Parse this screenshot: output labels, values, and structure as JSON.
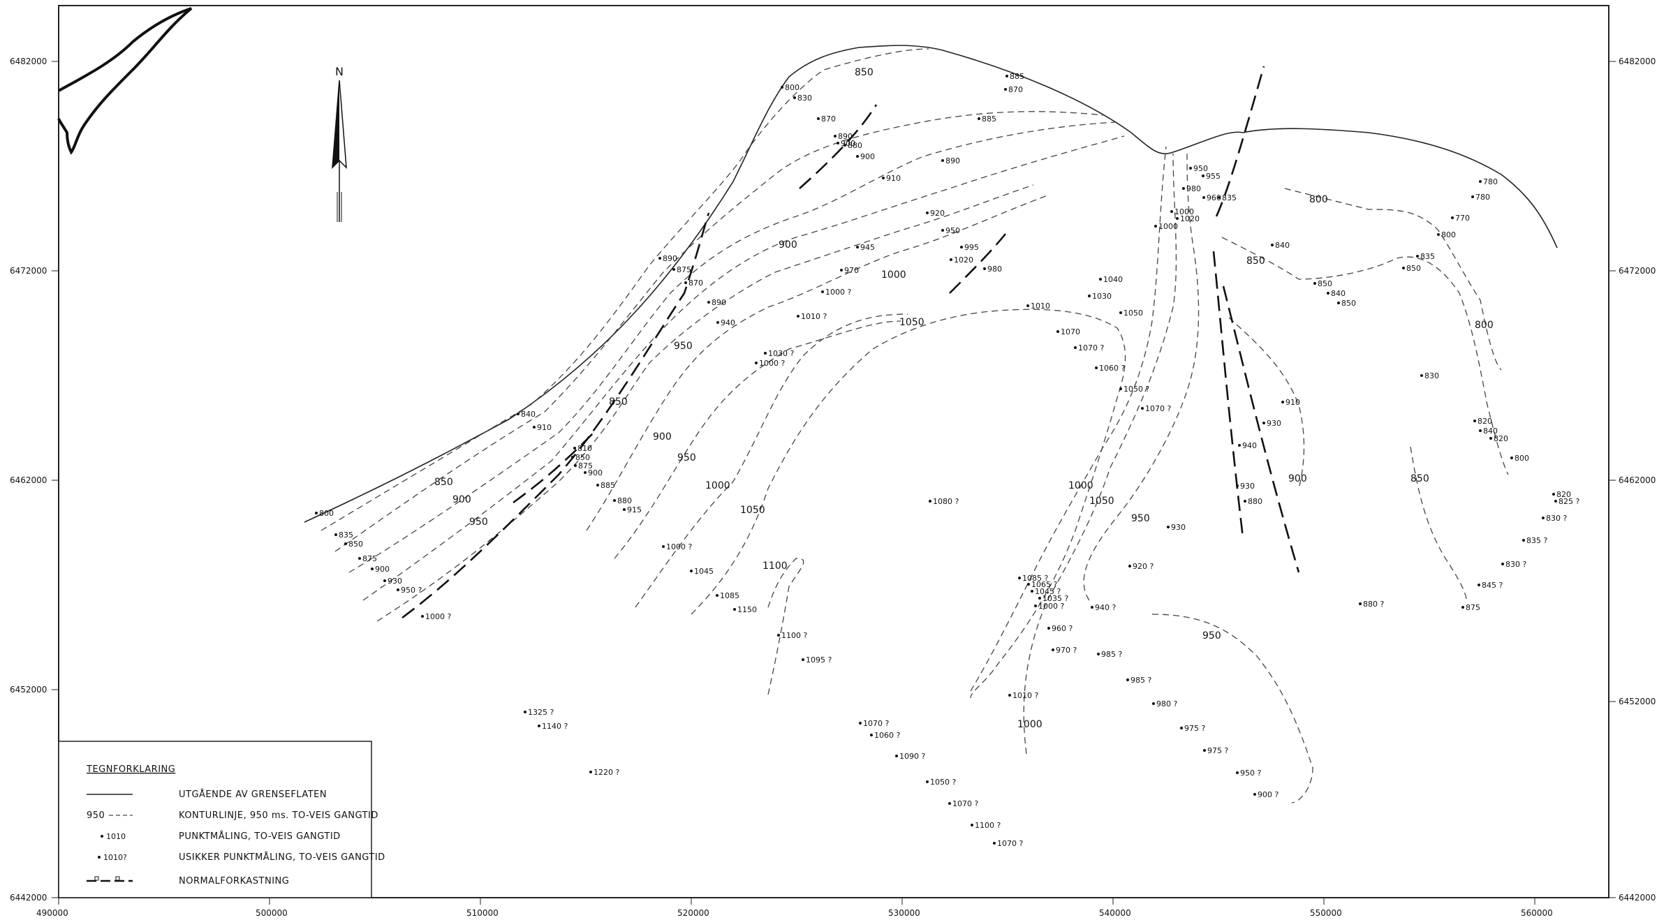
{
  "map": {
    "x_ticks": [
      "490000",
      "500000",
      "510000",
      "520000",
      "530000",
      "540000",
      "550000",
      "560000"
    ],
    "y_ticks_left": [
      "6482000",
      "6472000",
      "6462000",
      "6452000",
      "6442000"
    ],
    "y_ticks_right": [
      "6482000",
      "6472000",
      "6462000",
      "6452000",
      "6442000"
    ],
    "north_label": "N"
  },
  "legend": {
    "title": "TEGNFORKLARING",
    "items": [
      {
        "prefix": "",
        "label": "UTGÅENDE AV GRENSEFLATEN"
      },
      {
        "prefix": "950",
        "label": "KONTURLINJE, 950 ms. TO-VEIS GANGTID"
      },
      {
        "prefix": "1010",
        "label": "PUNKTMÅLING, TO-VEIS GANGTID"
      },
      {
        "prefix": "1010?",
        "label": "USIKKER PUNKTMÅLING, TO-VEIS GANGTID"
      },
      {
        "prefix": "",
        "label": "NORMALFORKASTNING"
      }
    ]
  },
  "contour_labels": [
    "850",
    "900",
    "950",
    "1000",
    "1050",
    "850",
    "900",
    "950",
    "1000",
    "1050",
    "1100",
    "900",
    "950",
    "1000",
    "1050",
    "1000",
    "950",
    "850",
    "800",
    "850",
    "800",
    "900",
    "950",
    "850"
  ],
  "points": [
    "800",
    "830",
    "870",
    "890",
    "900",
    "880",
    "900",
    "885",
    "870",
    "885",
    "890",
    "910",
    "920",
    "950",
    "995",
    "1020",
    "980",
    "945",
    "970",
    "1000 ?",
    "1010 ?",
    "1010",
    "1030",
    "1040",
    "1050",
    "1070",
    "1070 ?",
    "1060 ?",
    "1050 ?",
    "1070 ?",
    "890",
    "875",
    "870",
    "890",
    "940",
    "1030 ?",
    "1000 ?",
    "840",
    "910",
    "810",
    "850",
    "875",
    "900",
    "885",
    "880",
    "915",
    "1000 ?",
    "1045",
    "1085",
    "1150",
    "1100 ?",
    "1095 ?",
    "800",
    "835",
    "850",
    "875",
    "900",
    "930",
    "950 ?",
    "1000 ?",
    "950",
    "955",
    "980",
    "960",
    "835",
    "1000",
    "1020",
    "1000",
    "840",
    "850",
    "840",
    "850",
    "835",
    "850",
    "780",
    "780",
    "770",
    "800",
    "830",
    "820",
    "840",
    "820",
    "800",
    "820",
    "825 ?",
    "830 ?",
    "835 ?",
    "830 ?",
    "845 ?",
    "875",
    "880 ?",
    "910",
    "930",
    "940",
    "930",
    "880",
    "930",
    "920 ?",
    "940 ?",
    "960 ?",
    "970 ?",
    "985 ?",
    "985 ?",
    "980 ?",
    "975 ?",
    "975 ?",
    "950 ?",
    "900 ?",
    "1085 ?",
    "1065 ?",
    "1045 ?",
    "1035 ?",
    "1000 ?",
    "1080 ?",
    "1010 ?",
    "1325 ?",
    "1140 ?",
    "1220 ?",
    "1070 ?",
    "1060 ?",
    "1090 ?",
    "1050 ?",
    "1070 ?",
    "1100 ?",
    "1070 ?"
  ]
}
